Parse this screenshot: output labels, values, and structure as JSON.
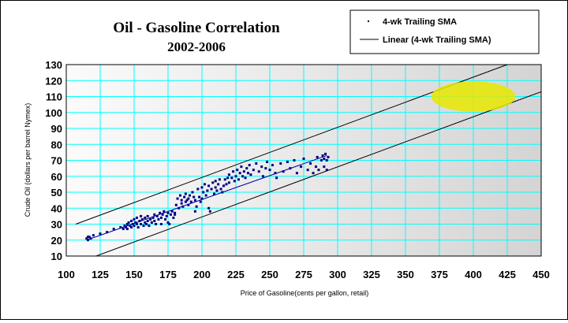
{
  "chart_data": {
    "type": "scatter",
    "title": "Oil - Gasoline Correlation",
    "subtitle": "2002-2006",
    "xlabel": "Price of Gasoline(cents per gallon, retail)",
    "ylabel": "Crude Oil (dollars per barrel Nymex)",
    "xlim": [
      100,
      450
    ],
    "ylim": [
      10,
      130
    ],
    "xticks": [
      100,
      125,
      150,
      175,
      200,
      225,
      250,
      275,
      300,
      325,
      350,
      375,
      400,
      425,
      450
    ],
    "yticks": [
      10,
      20,
      30,
      40,
      50,
      60,
      70,
      80,
      90,
      100,
      110,
      120,
      130
    ],
    "grid": true,
    "legend_position": "top-right",
    "series": [
      {
        "name": "4-wk Trailing SMA",
        "kind": "points",
        "color": "#000080",
        "points": [
          [
            115,
            21
          ],
          [
            116,
            20
          ],
          [
            117,
            22
          ],
          [
            118,
            21
          ],
          [
            116,
            22
          ],
          [
            120,
            23
          ],
          [
            125,
            24
          ],
          [
            130,
            25
          ],
          [
            135,
            27
          ],
          [
            140,
            28
          ],
          [
            142,
            27
          ],
          [
            143,
            29
          ],
          [
            144,
            28
          ],
          [
            145,
            30
          ],
          [
            145,
            27
          ],
          [
            146,
            31
          ],
          [
            147,
            29
          ],
          [
            148,
            32
          ],
          [
            148,
            28
          ],
          [
            149,
            30
          ],
          [
            150,
            33
          ],
          [
            150,
            29
          ],
          [
            151,
            31
          ],
          [
            152,
            34
          ],
          [
            152,
            30
          ],
          [
            153,
            28
          ],
          [
            154,
            32
          ],
          [
            155,
            35
          ],
          [
            155,
            30
          ],
          [
            156,
            33
          ],
          [
            157,
            29
          ],
          [
            158,
            31
          ],
          [
            158,
            34
          ],
          [
            159,
            30
          ],
          [
            160,
            32
          ],
          [
            160,
            35
          ],
          [
            161,
            29
          ],
          [
            162,
            33
          ],
          [
            163,
            31
          ],
          [
            164,
            34
          ],
          [
            165,
            32
          ],
          [
            165,
            36
          ],
          [
            166,
            30
          ],
          [
            167,
            35
          ],
          [
            168,
            33
          ],
          [
            169,
            37
          ],
          [
            170,
            34
          ],
          [
            170,
            30
          ],
          [
            171,
            36
          ],
          [
            172,
            38
          ],
          [
            173,
            33
          ],
          [
            174,
            35
          ],
          [
            175,
            37
          ],
          [
            175,
            31
          ],
          [
            176,
            30
          ],
          [
            177,
            36
          ],
          [
            178,
            38
          ],
          [
            179,
            34
          ],
          [
            180,
            37
          ],
          [
            180,
            36
          ],
          [
            181,
            42
          ],
          [
            182,
            46
          ],
          [
            183,
            40
          ],
          [
            184,
            48
          ],
          [
            185,
            43
          ],
          [
            185,
            45
          ],
          [
            186,
            41
          ],
          [
            187,
            47
          ],
          [
            188,
            44
          ],
          [
            188,
            49
          ],
          [
            189,
            45
          ],
          [
            190,
            46
          ],
          [
            190,
            42
          ],
          [
            191,
            48
          ],
          [
            192,
            44
          ],
          [
            193,
            50
          ],
          [
            194,
            47
          ],
          [
            195,
            38
          ],
          [
            195,
            45
          ],
          [
            196,
            41
          ],
          [
            197,
            52
          ],
          [
            198,
            47
          ],
          [
            199,
            44
          ],
          [
            200,
            53
          ],
          [
            200,
            46
          ],
          [
            201,
            50
          ],
          [
            202,
            55
          ],
          [
            203,
            48
          ],
          [
            204,
            51
          ],
          [
            205,
            40
          ],
          [
            205,
            54
          ],
          [
            206,
            38
          ],
          [
            207,
            52
          ],
          [
            208,
            56
          ],
          [
            209,
            49
          ],
          [
            210,
            53
          ],
          [
            210,
            57
          ],
          [
            211,
            51
          ],
          [
            212,
            55
          ],
          [
            213,
            58
          ],
          [
            214,
            52
          ],
          [
            215,
            50
          ],
          [
            216,
            54
          ],
          [
            217,
            58
          ],
          [
            218,
            55
          ],
          [
            219,
            59
          ],
          [
            220,
            61
          ],
          [
            220,
            56
          ],
          [
            222,
            59
          ],
          [
            223,
            63
          ],
          [
            224,
            57
          ],
          [
            225,
            60
          ],
          [
            226,
            64
          ],
          [
            227,
            58
          ],
          [
            228,
            62
          ],
          [
            229,
            66
          ],
          [
            230,
            60
          ],
          [
            231,
            63
          ],
          [
            232,
            59
          ],
          [
            233,
            65
          ],
          [
            234,
            62
          ],
          [
            235,
            67
          ],
          [
            236,
            61
          ],
          [
            238,
            64
          ],
          [
            240,
            68
          ],
          [
            242,
            63
          ],
          [
            244,
            66
          ],
          [
            245,
            60
          ],
          [
            247,
            65
          ],
          [
            248,
            69
          ],
          [
            250,
            64
          ],
          [
            252,
            67
          ],
          [
            254,
            62
          ],
          [
            255,
            59
          ],
          [
            258,
            68
          ],
          [
            260,
            63
          ],
          [
            263,
            69
          ],
          [
            265,
            65
          ],
          [
            268,
            70
          ],
          [
            270,
            62
          ],
          [
            273,
            66
          ],
          [
            275,
            71
          ],
          [
            278,
            64
          ],
          [
            280,
            68
          ],
          [
            282,
            62
          ],
          [
            284,
            66
          ],
          [
            285,
            72
          ],
          [
            286,
            64
          ],
          [
            288,
            70
          ],
          [
            289,
            73
          ],
          [
            290,
            71
          ],
          [
            290,
            66
          ],
          [
            291,
            74
          ],
          [
            292,
            70
          ],
          [
            293,
            72
          ],
          [
            292,
            64
          ]
        ]
      },
      {
        "name": "Linear (4-wk Trailing SMA)",
        "kind": "line",
        "color": "#0000a0",
        "x": [
          115,
          292
        ],
        "y": [
          20,
          73
        ]
      }
    ],
    "annotations": [
      {
        "kind": "line",
        "color": "#000000",
        "x": [
          107,
          425
        ],
        "y": [
          30,
          130
        ]
      },
      {
        "kind": "line",
        "color": "#000000",
        "x": [
          122,
          450
        ],
        "y": [
          10,
          113
        ]
      },
      {
        "kind": "ellipse",
        "color": "#e8e800",
        "cx": 400,
        "cy": 110,
        "rx": 31,
        "ry": 9.5
      }
    ]
  }
}
